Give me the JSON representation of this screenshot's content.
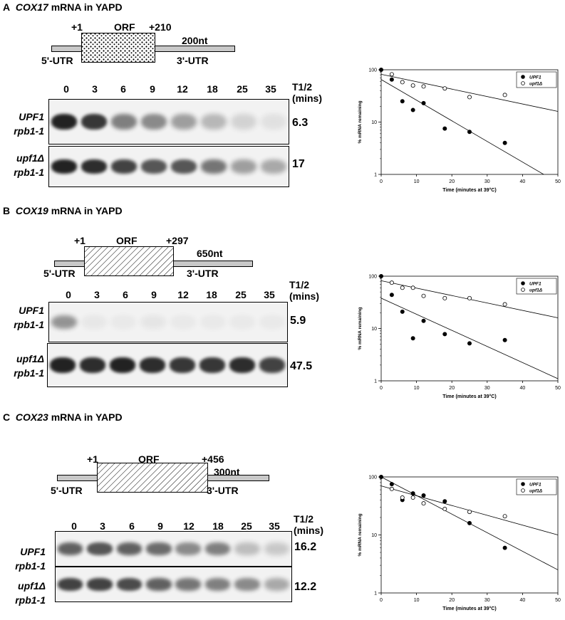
{
  "panels": [
    {
      "letter": "A",
      "gene": "COX17",
      "suffix": " mRNA in YAPD",
      "diagram": {
        "start": "+1",
        "orf": "ORF",
        "end": "+210",
        "length": "200nt",
        "utr5": "5'-UTR",
        "utr3": "3'-UTR"
      },
      "lanes": [
        "0",
        "3",
        "6",
        "9",
        "12",
        "18",
        "25",
        "35"
      ],
      "t_half_header": [
        "T1/2",
        "(mins)"
      ],
      "gel_rows": [
        {
          "strain_line1": "UPF1",
          "strain_line2": "rpb1-1",
          "t_half": "6.3",
          "intensities": [
            1.0,
            0.9,
            0.55,
            0.5,
            0.4,
            0.28,
            0.15,
            0.08
          ]
        },
        {
          "strain_line1": "upf1Δ",
          "strain_line2": "rpb1-1",
          "t_half": "17",
          "intensities": [
            1.0,
            0.95,
            0.85,
            0.75,
            0.75,
            0.6,
            0.4,
            0.35
          ]
        }
      ]
    },
    {
      "letter": "B",
      "gene": "COX19",
      "suffix": " mRNA in YAPD",
      "diagram": {
        "start": "+1",
        "orf": "ORF",
        "end": "+297",
        "length": "650nt",
        "utr5": "5'-UTR",
        "utr3": "3'-UTR"
      },
      "lanes": [
        "0",
        "3",
        "6",
        "9",
        "12",
        "18",
        "25",
        "35"
      ],
      "t_half_header": [
        "T1/2",
        "(mins)"
      ],
      "gel_rows": [
        {
          "strain_line1": "UPF1",
          "strain_line2": "rpb1-1",
          "t_half": "5.9",
          "intensities": [
            0.45,
            0.05,
            0.04,
            0.06,
            0.03,
            0.02,
            0.02,
            0.02
          ]
        },
        {
          "strain_line1": "upf1Δ",
          "strain_line2": "rpb1-1",
          "t_half": "47.5",
          "intensities": [
            1.0,
            0.95,
            1.0,
            0.95,
            0.9,
            0.9,
            0.95,
            0.85
          ]
        }
      ]
    },
    {
      "letter": "C",
      "gene": "COX23",
      "suffix": " mRNA in YAPD",
      "diagram": {
        "start": "+1",
        "orf": "ORF",
        "end": "+456",
        "length": "300nt",
        "utr5": "5'-UTR",
        "utr3": "3'-UTR"
      },
      "lanes": [
        "0",
        "3",
        "6",
        "9",
        "12",
        "18",
        "25",
        "35"
      ],
      "t_half_header": [
        "T1/2",
        "(mins)"
      ],
      "gel_rows": [
        {
          "strain_line1": "UPF1",
          "strain_line2": "rpb1-1",
          "t_half": "16.2",
          "intensities": [
            0.7,
            0.75,
            0.7,
            0.65,
            0.5,
            0.55,
            0.25,
            0.2
          ]
        },
        {
          "strain_line1": "upf1Δ",
          "strain_line2": "rpb1-1",
          "t_half": "12.2",
          "intensities": [
            0.85,
            0.85,
            0.8,
            0.7,
            0.6,
            0.55,
            0.5,
            0.35
          ]
        }
      ]
    }
  ],
  "chart_data": [
    {
      "type": "scatter",
      "xlabel": "Time (minutes at 39°C)",
      "ylabel": "% mRNA remaining",
      "yscale": "log",
      "xlim": [
        0,
        50
      ],
      "ylim": [
        1,
        100
      ],
      "xticks": [
        "0",
        "10",
        "20",
        "30",
        "40",
        "50"
      ],
      "yticks": [
        "1",
        "10",
        "100"
      ],
      "legend_position": "top-right",
      "series": [
        {
          "name": "UPF1",
          "marker": "filled",
          "x": [
            0,
            3,
            6,
            9,
            12,
            18,
            25,
            35
          ],
          "y": [
            100,
            65,
            25,
            17,
            23,
            7.5,
            6.5,
            4
          ],
          "fit": [
            [
              0,
              65
            ],
            [
              46,
              1
            ]
          ]
        },
        {
          "name": "upf1Δ",
          "marker": "open",
          "x": [
            3,
            6,
            9,
            12,
            18,
            25,
            35
          ],
          "y": [
            82,
            58,
            50,
            48,
            44,
            30,
            33
          ],
          "fit": [
            [
              0,
              82
            ],
            [
              50,
              16
            ]
          ]
        }
      ]
    },
    {
      "type": "scatter",
      "xlabel": "Time (minutes at 39°C)",
      "ylabel": "% mRNA remaining",
      "yscale": "log",
      "xlim": [
        0,
        50
      ],
      "ylim": [
        1,
        100
      ],
      "xticks": [
        "0",
        "10",
        "20",
        "30",
        "40",
        "50"
      ],
      "yticks": [
        "1",
        "10",
        "100"
      ],
      "legend_position": "top-right",
      "series": [
        {
          "name": "UPF1",
          "marker": "filled",
          "x": [
            0,
            3,
            6,
            9,
            12,
            18,
            25,
            35
          ],
          "y": [
            100,
            44,
            21,
            6.5,
            14,
            7.8,
            5.2,
            6
          ],
          "fit": [
            [
              0,
              38
            ],
            [
              50,
              1.1
            ]
          ]
        },
        {
          "name": "upf1Δ",
          "marker": "open",
          "x": [
            3,
            6,
            9,
            12,
            18,
            25,
            35
          ],
          "y": [
            75,
            60,
            60,
            42,
            38,
            38,
            29
          ],
          "fit": [
            [
              0,
              82
            ],
            [
              50,
              16
            ]
          ]
        }
      ]
    },
    {
      "type": "scatter",
      "xlabel": "Time (minutes at 39°C)",
      "ylabel": "% mRNA remaining",
      "yscale": "log",
      "xlim": [
        0,
        50
      ],
      "ylim": [
        1,
        100
      ],
      "xticks": [
        "0",
        "10",
        "20",
        "30",
        "40",
        "50"
      ],
      "yticks": [
        "1",
        "10",
        "100"
      ],
      "legend_position": "top-right",
      "series": [
        {
          "name": "UPF1",
          "marker": "filled",
          "x": [
            0,
            3,
            6,
            9,
            12,
            18,
            25,
            35
          ],
          "y": [
            100,
            75,
            40,
            52,
            48,
            38,
            16,
            6
          ],
          "fit": [
            [
              0,
              100
            ],
            [
              50,
              2.5
            ]
          ]
        },
        {
          "name": "upf1Δ",
          "marker": "open",
          "x": [
            3,
            6,
            9,
            12,
            18,
            25,
            35
          ],
          "y": [
            62,
            44,
            44,
            35,
            28,
            25,
            21
          ],
          "fit": [
            [
              0,
              70
            ],
            [
              50,
              10
            ]
          ]
        }
      ]
    }
  ],
  "colors": {
    "band": "#111111",
    "gel_bg": "#f2f2f2",
    "utr": "#c8c8c8"
  }
}
